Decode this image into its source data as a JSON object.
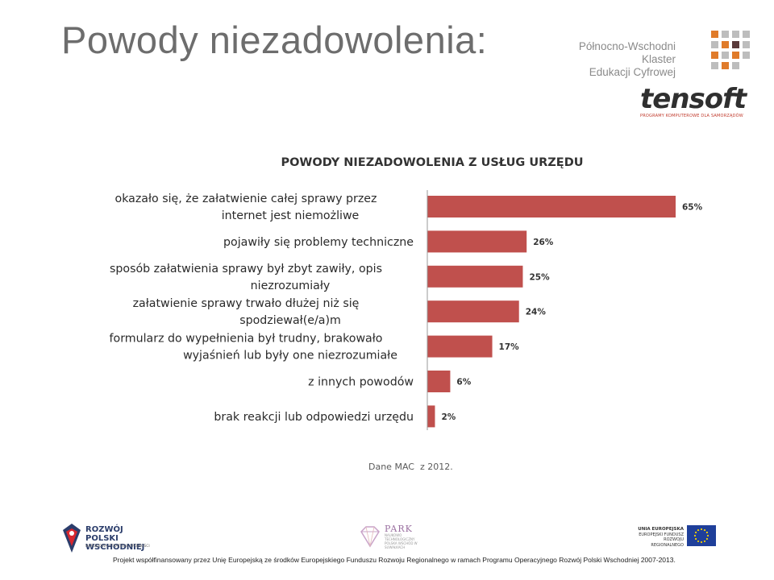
{
  "slide": {
    "title": "Powody niezadowolenia:"
  },
  "logos": {
    "klaster_line1": "Północno-Wschodni Klaster",
    "klaster_line2": "Edukacji Cyfrowej",
    "tensoft": "tensoft",
    "tensoft_sub": "PROGRAMY KOMPUTEROWE DLA SAMORZĄDÓW",
    "rpw_line1": "ROZWÓJ",
    "rpw_line2": "POLSKI WSCHODNIEJ",
    "rpw_sub": "NARODOWA STRATEGIA SPÓJNOŚCI",
    "park": "PARK",
    "park_sub": "NAUKOWO TECHNOLOGICZNY POLSKA WSCHÓD W SUWAŁKACH",
    "eu_line1": "UNIA EUROPEJSKA",
    "eu_line2": "EUROPEJSKI FUNDUSZ",
    "eu_line3": "ROZWOJU REGIONALNEGO"
  },
  "chart_data": {
    "type": "bar",
    "orientation": "horizontal",
    "title": "POWODY NIEZADOWOLENIA Z USŁUG URZĘDU",
    "categories": [
      [
        "okazało się, że załatwienie całej sprawy przez",
        "internet jest niemożliwe"
      ],
      [
        "pojawiły się problemy techniczne"
      ],
      [
        "sposób załatwienia sprawy był zbyt zawiły, opis",
        "niezrozumiały"
      ],
      [
        "załatwienie sprawy trwało dłużej niż się",
        "spodziewał(e/a)m"
      ],
      [
        "formularz do wypełnienia był trudny, brakowało",
        "wyjaśnień lub były one niezrozumiałe"
      ],
      [
        "z innych powodów"
      ],
      [
        "brak reakcji lub odpowiedzi urzędu"
      ]
    ],
    "values": [
      65,
      26,
      25,
      24,
      17,
      6,
      2
    ],
    "value_labels": [
      "65%",
      "26%",
      "25%",
      "24%",
      "17%",
      "6%",
      "2%"
    ],
    "unit": "%",
    "xlim": [
      0,
      65
    ],
    "bar_color": "#c0504d",
    "grid": false,
    "legend": "none"
  },
  "source": "Dane MAC  z 2012.",
  "footnote": "Projekt współfinansowany przez Unię Europejską ze środków Europejskiego Funduszu Rozwoju Regionalnego w ramach Programu Operacyjnego Rozwój Polski Wschodniej 2007-2013.",
  "colors": {
    "bar": "#c0504d",
    "title_gray": "#6d6d6d",
    "dot_orange": "#e07b2a",
    "dot_gray": "#bdbdbd"
  }
}
